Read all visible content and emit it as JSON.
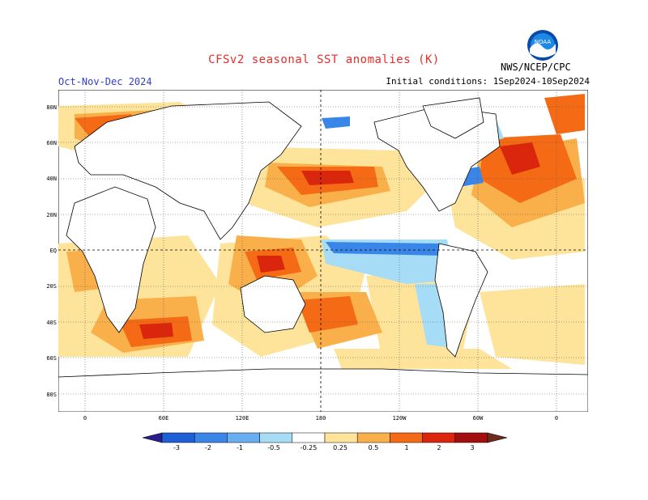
{
  "title": "CFSv2 seasonal SST anomalies (K)",
  "season": "Oct-Nov-Dec 2024",
  "initial_conditions": "Initial conditions: 1Sep2024-10Sep2024",
  "agency": "NWS/NCEP/CPC",
  "logo_text": "NOAA",
  "lat_labels": [
    "80N",
    "60N",
    "40N",
    "20N",
    "EQ",
    "20S",
    "40S",
    "60S",
    "80S"
  ],
  "lon_labels": [
    "0",
    "60E",
    "120E",
    "180",
    "120W",
    "60W",
    "0"
  ],
  "colorbar": {
    "labels": [
      "-3",
      "-2",
      "-1",
      "-0.5",
      "-0.25",
      "0.25",
      "0.5",
      "1",
      "2",
      "3"
    ],
    "colors": [
      "#2a1e8c",
      "#1f5fd6",
      "#3a86e8",
      "#6aaef2",
      "#a6dcf5",
      "#ffffff",
      "#fde49a",
      "#fab04a",
      "#f56a14",
      "#d9260c",
      "#a30f0f",
      "#6e2a1a"
    ]
  },
  "legend_unit": "K"
}
